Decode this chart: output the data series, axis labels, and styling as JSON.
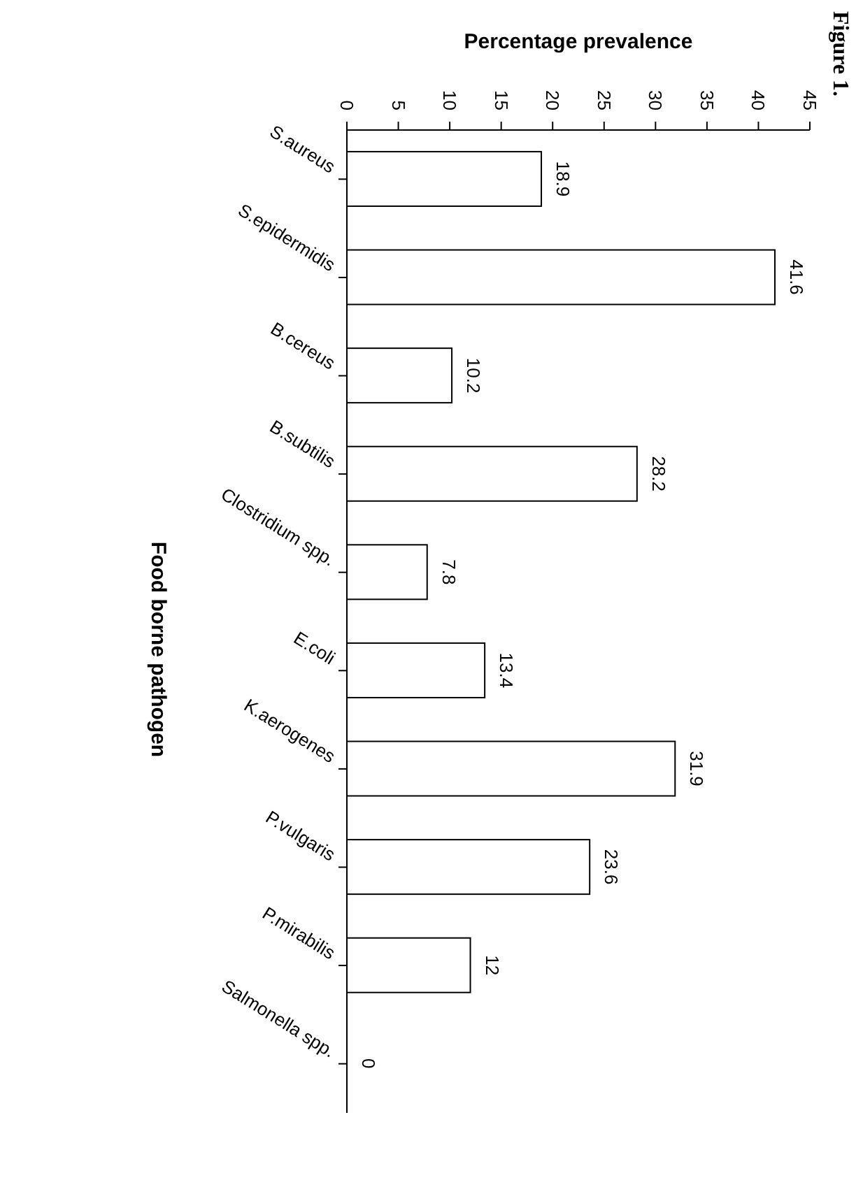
{
  "chart_data": {
    "type": "bar",
    "orientation": "horizontal",
    "title": "Figure 1.",
    "xlabel": "Percentage prevalence",
    "ylabel": "Food borne pathogen",
    "categories": [
      "S.aureus",
      "S.epidermidis",
      "B.cereus",
      "B.subtilis",
      "Clostridium spp.",
      "E.coli",
      "K.aerogenes",
      "P.vulgaris",
      "P.mirabilis",
      "Salmonella spp."
    ],
    "values": [
      18.9,
      41.6,
      10.2,
      28.2,
      7.8,
      13.4,
      31.9,
      23.6,
      12,
      0
    ],
    "color": "#ffffff",
    "xlim": [
      0,
      45
    ],
    "xticks": [
      0,
      5,
      10,
      15,
      20,
      25,
      30,
      35,
      40,
      45
    ],
    "data_labels": true,
    "grid": false,
    "legend": false
  }
}
